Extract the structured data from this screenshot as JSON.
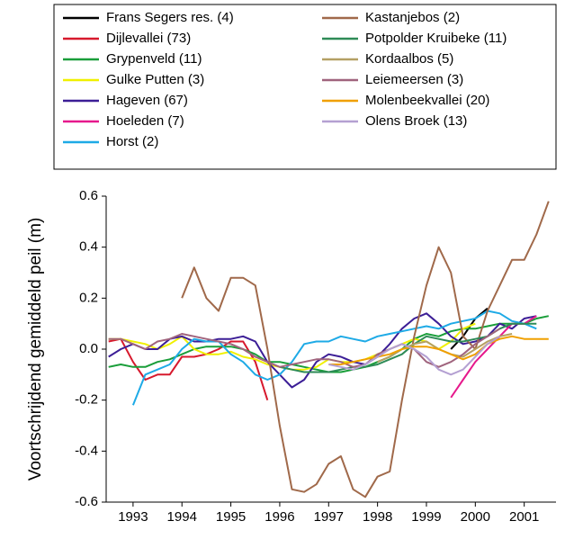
{
  "chart_data": {
    "type": "line",
    "y_label": "Voortschrijdend gemiddeld peil (m)",
    "x": [
      1993.0,
      1993.25,
      1993.5,
      1993.75,
      1994.0,
      1994.25,
      1994.5,
      1994.75,
      1995.0,
      1995.25,
      1995.5,
      1995.75,
      1996.0,
      1996.25,
      1996.5,
      1996.75,
      1997.0,
      1997.25,
      1997.5,
      1997.75,
      1998.0,
      1998.25,
      1998.5,
      1998.75,
      1999.0,
      1999.25,
      1999.5,
      1999.75,
      2000.0,
      2000.25,
      2000.5,
      2000.75,
      2001.0,
      2001.25,
      2001.5,
      2001.75,
      2002.0
    ],
    "xlim": [
      1992.95,
      2002.15
    ],
    "xticks": [
      {
        "value": 1993.5,
        "label": "1993"
      },
      {
        "value": 1994.5,
        "label": "1994"
      },
      {
        "value": 1995.5,
        "label": "1995"
      },
      {
        "value": 1996.5,
        "label": "1996"
      },
      {
        "value": 1997.5,
        "label": "1997"
      },
      {
        "value": 1998.5,
        "label": "1998"
      },
      {
        "value": 1999.5,
        "label": "1999"
      },
      {
        "value": 2000.5,
        "label": "2000"
      },
      {
        "value": 2001.5,
        "label": "2001"
      }
    ],
    "ylim": [
      -0.6,
      0.6
    ],
    "yticks": [
      -0.6,
      -0.4,
      -0.2,
      {
        "value": 0,
        "label": "0.0"
      },
      0.2,
      0.4,
      0.6
    ],
    "series": [
      {
        "name": "Frans Segers res. (4)",
        "color": "#000000",
        "values": [
          null,
          null,
          null,
          null,
          null,
          null,
          null,
          null,
          null,
          null,
          null,
          null,
          null,
          null,
          null,
          null,
          null,
          null,
          null,
          null,
          null,
          null,
          null,
          null,
          null,
          null,
          null,
          null,
          0.0,
          0.05,
          0.12,
          0.16,
          null,
          null,
          null,
          null,
          null
        ]
      },
      {
        "name": "Dijlevallei (73)",
        "color": "#d7192d",
        "values": [
          0.03,
          0.04,
          -0.05,
          -0.12,
          -0.1,
          -0.1,
          -0.03,
          -0.03,
          -0.02,
          0.0,
          0.03,
          0.03,
          -0.05,
          -0.2,
          null,
          null,
          null,
          null,
          null,
          null,
          null,
          null,
          null,
          null,
          null,
          null,
          null,
          null,
          null,
          null,
          null,
          null,
          null,
          null,
          null,
          null,
          null
        ]
      },
      {
        "name": "Grypenveld (11)",
        "color": "#1a9e3a",
        "values": [
          -0.07,
          -0.06,
          -0.07,
          -0.07,
          -0.05,
          -0.04,
          -0.02,
          0.0,
          0.01,
          0.01,
          0.01,
          0.0,
          -0.02,
          -0.05,
          -0.05,
          -0.06,
          -0.07,
          -0.08,
          -0.09,
          -0.09,
          -0.08,
          -0.07,
          -0.05,
          -0.03,
          0.0,
          0.04,
          0.06,
          0.05,
          0.07,
          0.08,
          0.08,
          0.09,
          0.1,
          0.1,
          0.1,
          0.12,
          0.13
        ]
      },
      {
        "name": "Gulke Putten (3)",
        "color": "#f0f000",
        "values": [
          0.04,
          0.04,
          0.03,
          0.02,
          0.0,
          0.02,
          0.05,
          0.0,
          -0.02,
          -0.02,
          -0.01,
          -0.03,
          -0.04,
          -0.06,
          -0.07,
          -0.08,
          -0.08,
          -0.07,
          -0.04,
          -0.05,
          -0.05,
          -0.04,
          -0.02,
          0.0,
          0.02,
          0.04,
          0.03,
          0.0,
          0.03,
          0.08,
          0.1,
          null,
          null,
          null,
          null,
          null,
          null
        ]
      },
      {
        "name": "Hageven (67)",
        "color": "#3c1e96",
        "values": [
          -0.03,
          0.0,
          0.02,
          0.0,
          0.0,
          0.04,
          0.05,
          0.03,
          0.03,
          0.04,
          0.04,
          0.05,
          0.03,
          -0.05,
          -0.1,
          -0.15,
          -0.12,
          -0.05,
          -0.02,
          -0.03,
          -0.05,
          -0.06,
          -0.03,
          0.02,
          0.08,
          0.12,
          0.14,
          0.1,
          0.05,
          0.02,
          0.03,
          0.05,
          0.1,
          0.08,
          0.12,
          0.13,
          null
        ]
      },
      {
        "name": "Hoeleden (7)",
        "color": "#e6198c",
        "values": [
          null,
          null,
          null,
          null,
          null,
          null,
          null,
          null,
          null,
          null,
          null,
          null,
          null,
          null,
          null,
          null,
          null,
          null,
          null,
          null,
          null,
          null,
          null,
          null,
          null,
          null,
          null,
          null,
          -0.19,
          -0.12,
          -0.05,
          0.0,
          0.05,
          0.1,
          0.1,
          0.13,
          null
        ]
      },
      {
        "name": "Horst (2)",
        "color": "#1eaae6",
        "values": [
          null,
          null,
          -0.22,
          -0.1,
          -0.08,
          -0.06,
          0.0,
          0.04,
          0.03,
          0.03,
          -0.02,
          -0.05,
          -0.1,
          -0.12,
          -0.1,
          -0.05,
          0.02,
          0.03,
          0.03,
          0.05,
          0.04,
          0.03,
          0.05,
          0.06,
          0.07,
          0.08,
          0.09,
          0.08,
          0.1,
          0.11,
          0.12,
          0.15,
          0.14,
          0.11,
          0.1,
          0.08,
          null
        ]
      },
      {
        "name": "Kastanjebos (2)",
        "color": "#a0694a",
        "values": [
          null,
          null,
          null,
          null,
          null,
          null,
          0.2,
          0.32,
          0.2,
          0.15,
          0.28,
          0.28,
          0.25,
          0.0,
          -0.3,
          -0.55,
          -0.56,
          -0.53,
          -0.45,
          -0.42,
          -0.55,
          -0.58,
          -0.5,
          -0.48,
          -0.2,
          0.05,
          0.25,
          0.4,
          0.3,
          0.05,
          0.0,
          0.15,
          0.25,
          0.35,
          0.35,
          0.45,
          0.58
        ]
      },
      {
        "name": "Potpolder Kruibeke (11)",
        "color": "#2e8b57",
        "values": [
          null,
          null,
          null,
          null,
          null,
          null,
          null,
          null,
          null,
          null,
          null,
          null,
          null,
          null,
          -0.07,
          -0.08,
          -0.09,
          -0.09,
          -0.09,
          -0.08,
          -0.07,
          -0.07,
          -0.06,
          -0.04,
          -0.02,
          0.02,
          0.05,
          0.04,
          0.03,
          0.03,
          0.04,
          0.05,
          0.08,
          0.1,
          0.1,
          0.1,
          null
        ]
      },
      {
        "name": "Kordaalbos (5)",
        "color": "#b4a064",
        "values": [
          null,
          null,
          null,
          null,
          null,
          null,
          null,
          null,
          null,
          null,
          null,
          null,
          null,
          null,
          null,
          null,
          null,
          null,
          null,
          null,
          null,
          null,
          -0.05,
          -0.03,
          0.0,
          0.02,
          0.03,
          0.0,
          -0.02,
          -0.03,
          0.0,
          0.03,
          0.05,
          0.06,
          null,
          null,
          null
        ]
      },
      {
        "name": "Leiemeersen (3)",
        "color": "#a0647d",
        "values": [
          0.04,
          0.04,
          0.02,
          0.0,
          0.03,
          0.04,
          0.06,
          0.05,
          0.04,
          0.03,
          0.02,
          0.0,
          -0.03,
          -0.05,
          -0.07,
          -0.06,
          -0.05,
          -0.04,
          -0.04,
          -0.05,
          -0.07,
          -0.06,
          -0.02,
          0.0,
          0.02,
          0.0,
          -0.05,
          -0.07,
          -0.05,
          -0.02,
          0.02,
          0.05,
          0.08,
          null,
          null,
          null,
          null
        ]
      },
      {
        "name": "Molenbeekvallei (20)",
        "color": "#f0a000",
        "values": [
          null,
          null,
          null,
          null,
          null,
          null,
          null,
          null,
          null,
          null,
          null,
          null,
          null,
          null,
          null,
          null,
          null,
          null,
          -0.06,
          -0.06,
          -0.05,
          -0.04,
          -0.03,
          -0.02,
          0.0,
          0.01,
          0.01,
          0.0,
          -0.02,
          -0.04,
          -0.02,
          0.02,
          0.04,
          0.05,
          0.04,
          0.04,
          0.04
        ]
      },
      {
        "name": "Olens Broek (13)",
        "color": "#b4a0d2",
        "values": [
          null,
          null,
          null,
          null,
          null,
          null,
          null,
          null,
          null,
          null,
          null,
          null,
          null,
          null,
          null,
          null,
          null,
          null,
          -0.06,
          -0.07,
          -0.08,
          -0.06,
          -0.03,
          0.0,
          0.02,
          0.0,
          -0.03,
          -0.08,
          -0.1,
          -0.08,
          -0.03,
          0.02,
          0.05,
          null,
          null,
          null,
          null
        ]
      }
    ]
  }
}
